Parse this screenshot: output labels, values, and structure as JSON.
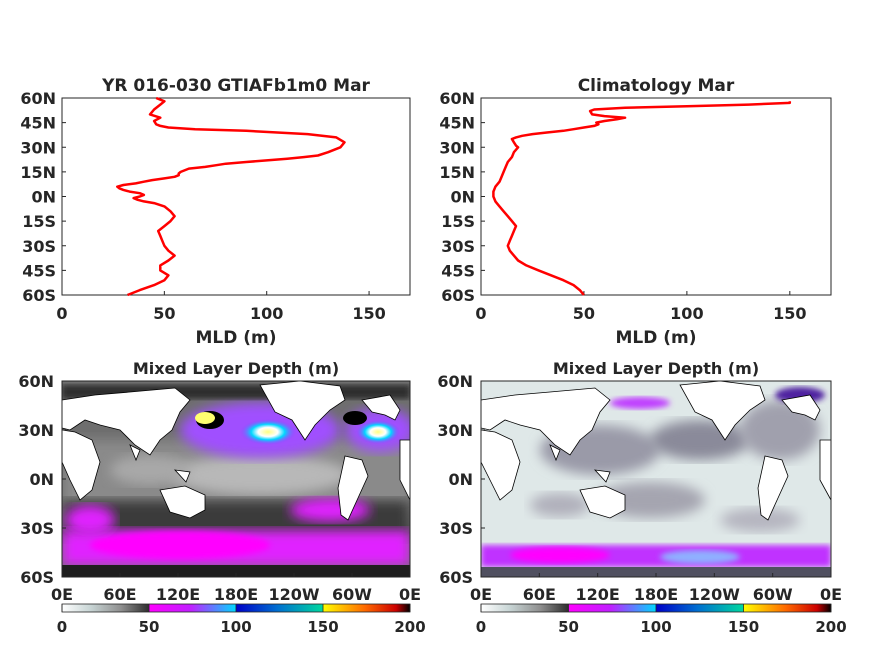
{
  "colors": {
    "line": "#ff0000",
    "axes": "#262626",
    "colormap": [
      "#ffffff",
      "#c9d6d6",
      "#8e8e8e",
      "#2e2e2e",
      "#ff00ff",
      "#8f40ff",
      "#00d7ff",
      "#0000c8",
      "#00d8a0",
      "#ffff00",
      "#ff6a00",
      "#cc0000",
      "#000000"
    ]
  },
  "chart_data": [
    {
      "type": "line",
      "title": "YR 016-030 GTIAFb1m0 Mar",
      "xlabel": "MLD (m)",
      "xlim": [
        0,
        170
      ],
      "xticks": [
        "0",
        "50",
        "100",
        "150"
      ],
      "yticks": [
        "60N",
        "45N",
        "30N",
        "15N",
        "0N",
        "15S",
        "30S",
        "45S",
        "60S"
      ],
      "ylim": [
        -60,
        60
      ],
      "series": [
        {
          "x": [
            32,
            38,
            45,
            50,
            52,
            48,
            48,
            52,
            55,
            52,
            50,
            49,
            48,
            47,
            50,
            53,
            55,
            53,
            50,
            45,
            40,
            37,
            35,
            38,
            40,
            38,
            33,
            30,
            28,
            27,
            30,
            36,
            40,
            44,
            50,
            55,
            57,
            57,
            58,
            62,
            70,
            75,
            80,
            90,
            100,
            110,
            118,
            125,
            130,
            136,
            138,
            134,
            120,
            90,
            65,
            52,
            48,
            46,
            45,
            48,
            43,
            45,
            48,
            50,
            46
          ],
          "y": [
            -60,
            -57,
            -54,
            -51,
            -48,
            -45,
            -42,
            -39,
            -36,
            -33,
            -30,
            -27,
            -24,
            -21,
            -18,
            -15,
            -12,
            -9,
            -6,
            -4,
            -3,
            -2,
            -1,
            0,
            1,
            2,
            3,
            4,
            5,
            6,
            7,
            8,
            9,
            10,
            11,
            12,
            13,
            14,
            15,
            17,
            18,
            19,
            20,
            21,
            22,
            23,
            24,
            25,
            27,
            30,
            33,
            36,
            38,
            40,
            41,
            42,
            43,
            44,
            46,
            48,
            50,
            53,
            56,
            58,
            60
          ]
        }
      ]
    },
    {
      "type": "line",
      "title": "Climatology Mar",
      "xlabel": "MLD (m)",
      "xlim": [
        0,
        170
      ],
      "xticks": [
        "0",
        "50",
        "100",
        "150"
      ],
      "yticks": [
        "60N",
        "45N",
        "30N",
        "15N",
        "0N",
        "15S",
        "30S",
        "45S",
        "60S"
      ],
      "ylim": [
        -60,
        60
      ],
      "series": [
        {
          "x": [
            50,
            48,
            45,
            40,
            34,
            28,
            22,
            18,
            16,
            14,
            13,
            14,
            15,
            16,
            17,
            15,
            13,
            11,
            9,
            7,
            6,
            6,
            7,
            9,
            10,
            11,
            12,
            13,
            15,
            16,
            18,
            17,
            16,
            15,
            17,
            20,
            25,
            32,
            40,
            45,
            50,
            55,
            57,
            56,
            60,
            66,
            70,
            60,
            54,
            53,
            55,
            70,
            100,
            130,
            150,
            150
          ],
          "y": [
            -60,
            -57,
            -54,
            -51,
            -48,
            -45,
            -42,
            -39,
            -36,
            -33,
            -30,
            -27,
            -24,
            -21,
            -18,
            -15,
            -12,
            -9,
            -6,
            -3,
            0,
            3,
            6,
            9,
            12,
            15,
            18,
            21,
            24,
            27,
            30,
            31,
            33,
            35,
            36,
            37,
            38,
            39,
            40,
            41,
            42,
            43,
            44,
            45,
            46,
            47,
            48,
            49,
            50,
            52,
            53,
            54,
            55,
            56,
            57,
            58
          ]
        }
      ]
    },
    {
      "type": "heatmap",
      "title": "Mixed Layer Depth (m)",
      "xticks": [
        "0E",
        "60E",
        "120E",
        "180E",
        "120W",
        "60W",
        "0E"
      ],
      "yticks": [
        "60N",
        "30N",
        "0N",
        "30S",
        "60S"
      ],
      "colorbar": {
        "ticks": [
          "0",
          "50",
          "100",
          "150",
          "200"
        ],
        "range": [
          0,
          200
        ]
      }
    },
    {
      "type": "heatmap",
      "title": "Mixed Layer Depth (m)",
      "xticks": [
        "0E",
        "60E",
        "120E",
        "180E",
        "120W",
        "60W",
        "0E"
      ],
      "yticks": [
        "60N",
        "30N",
        "0N",
        "30S",
        "60S"
      ],
      "colorbar": {
        "ticks": [
          "0",
          "50",
          "100",
          "150",
          "200"
        ],
        "range": [
          0,
          200
        ]
      }
    }
  ]
}
